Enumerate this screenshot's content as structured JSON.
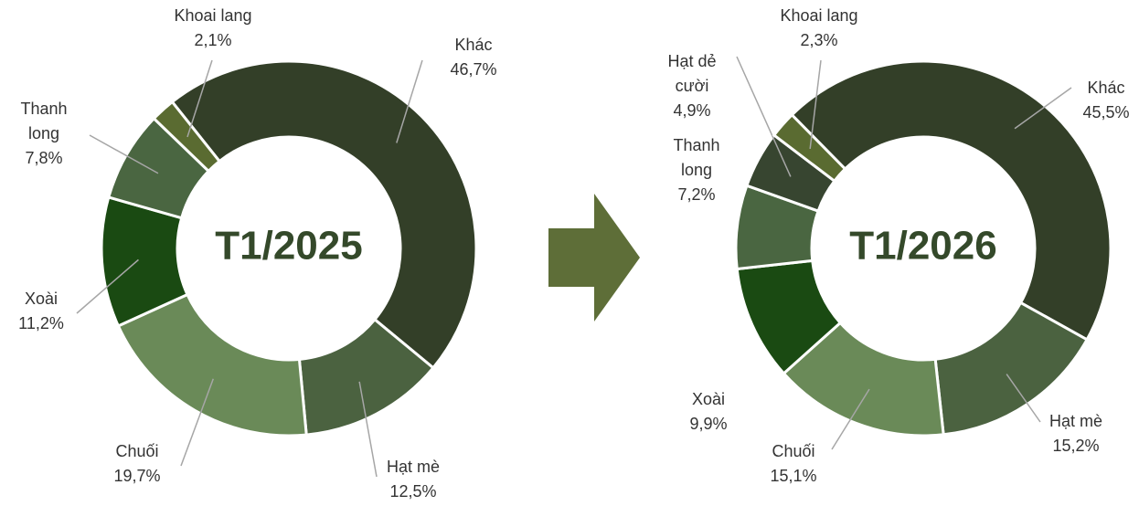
{
  "chart_data": [
    {
      "type": "donut",
      "center_label": "T1/2025",
      "categories": [
        "Khác",
        "Hạt mè",
        "Chuối",
        "Xoài",
        "Thanh long",
        "Khoai lang"
      ],
      "values": [
        46.7,
        12.5,
        19.7,
        11.2,
        7.8,
        2.1
      ],
      "value_labels": [
        "46,7%",
        "12,5%",
        "19,7%",
        "11,2%",
        "7,8%",
        "2,1%"
      ],
      "colors": [
        "#333f28",
        "#4b6240",
        "#6a8a58",
        "#1a4a12",
        "#4a6641",
        "#5a6b31"
      ]
    },
    {
      "type": "donut",
      "center_label": "T1/2026",
      "categories": [
        "Khác",
        "Hạt mè",
        "Chuối",
        "Xoài",
        "Thanh long",
        "Hạt dẻ cười",
        "Khoai lang"
      ],
      "values": [
        45.5,
        15.2,
        15.1,
        9.9,
        7.2,
        4.9,
        2.3
      ],
      "value_labels": [
        "45,5%",
        "15,2%",
        "15,1%",
        "9,9%",
        "7,2%",
        "4,9%",
        "2,3%"
      ],
      "colors": [
        "#333f28",
        "#4b6240",
        "#6a8a58",
        "#1a4a12",
        "#4a6641",
        "#374530",
        "#5a6b31"
      ]
    }
  ]
}
